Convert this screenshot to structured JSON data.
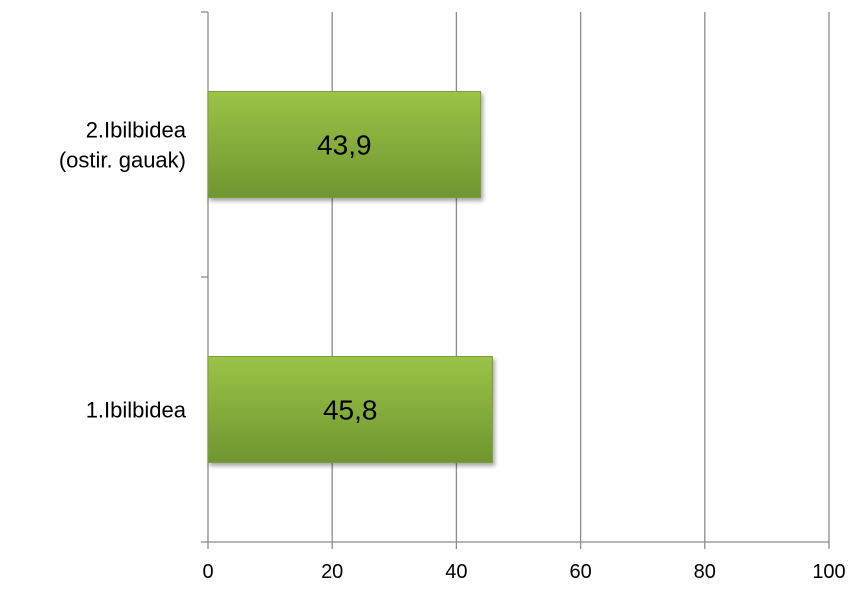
{
  "chart_data": {
    "type": "bar",
    "orientation": "horizontal",
    "categories": [
      [
        "2.Ibilbidea",
        "(ostir. gauak)"
      ],
      [
        "1.Ibilbidea"
      ]
    ],
    "values": [
      43.9,
      45.8
    ],
    "data_labels": [
      "43,9",
      "45,8"
    ],
    "xlim": [
      0,
      100
    ],
    "xticks": [
      0,
      20,
      40,
      60,
      80,
      100
    ],
    "xtick_labels": [
      "0",
      "20",
      "40",
      "60",
      "80",
      "100"
    ],
    "grid": "vertical",
    "legend": "none",
    "title": "",
    "xlabel": "",
    "ylabel": "",
    "colors": {
      "bar_top": "#9bc347",
      "bar_bottom": "#6f9630",
      "bar_edge": "#7a9e3a",
      "grid": "#8c8c8c",
      "axis": "#8c8c8c"
    }
  }
}
